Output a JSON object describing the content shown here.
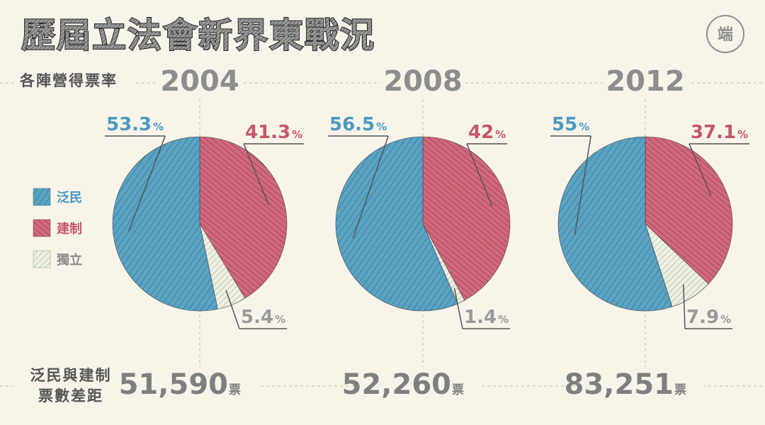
{
  "header": {
    "title": "歷屆立法會新界東戰況",
    "logo_text": "端"
  },
  "row_labels": {
    "share_line": "各陣營得票率",
    "gap_line1": "泛民與建制",
    "gap_line2": "票數差距",
    "vote_unit": "票"
  },
  "colors": {
    "pan_democrat": "#5aa3c3",
    "pro_establishment": "#d1697c",
    "independent": "#eef0e2",
    "background": "#f8f4ea"
  },
  "chart_data": {
    "type": "pie",
    "legend_position": "left",
    "series": [
      {
        "name": "泛民",
        "color": "#5aa3c3",
        "label_color": "#4a9ac0"
      },
      {
        "name": "建制",
        "color": "#d1697c",
        "label_color": "#c4566b"
      },
      {
        "name": "獨立",
        "color": "#eef0e2",
        "label_color": "#9a9a9a"
      }
    ],
    "pies": [
      {
        "year": "2004",
        "values": [
          53.3,
          41.3,
          5.4
        ],
        "labels": [
          "53.3",
          "41.3",
          "5.4"
        ],
        "unit": "%",
        "vote_gap": "51,590"
      },
      {
        "year": "2008",
        "values": [
          56.5,
          42,
          1.4
        ],
        "labels": [
          "56.5",
          "42",
          "1.4"
        ],
        "unit": "%",
        "vote_gap": "52,260"
      },
      {
        "year": "2012",
        "values": [
          55,
          37.1,
          7.9
        ],
        "labels": [
          "55",
          "37.1",
          "7.9"
        ],
        "unit": "%",
        "vote_gap": "83,251"
      }
    ]
  }
}
